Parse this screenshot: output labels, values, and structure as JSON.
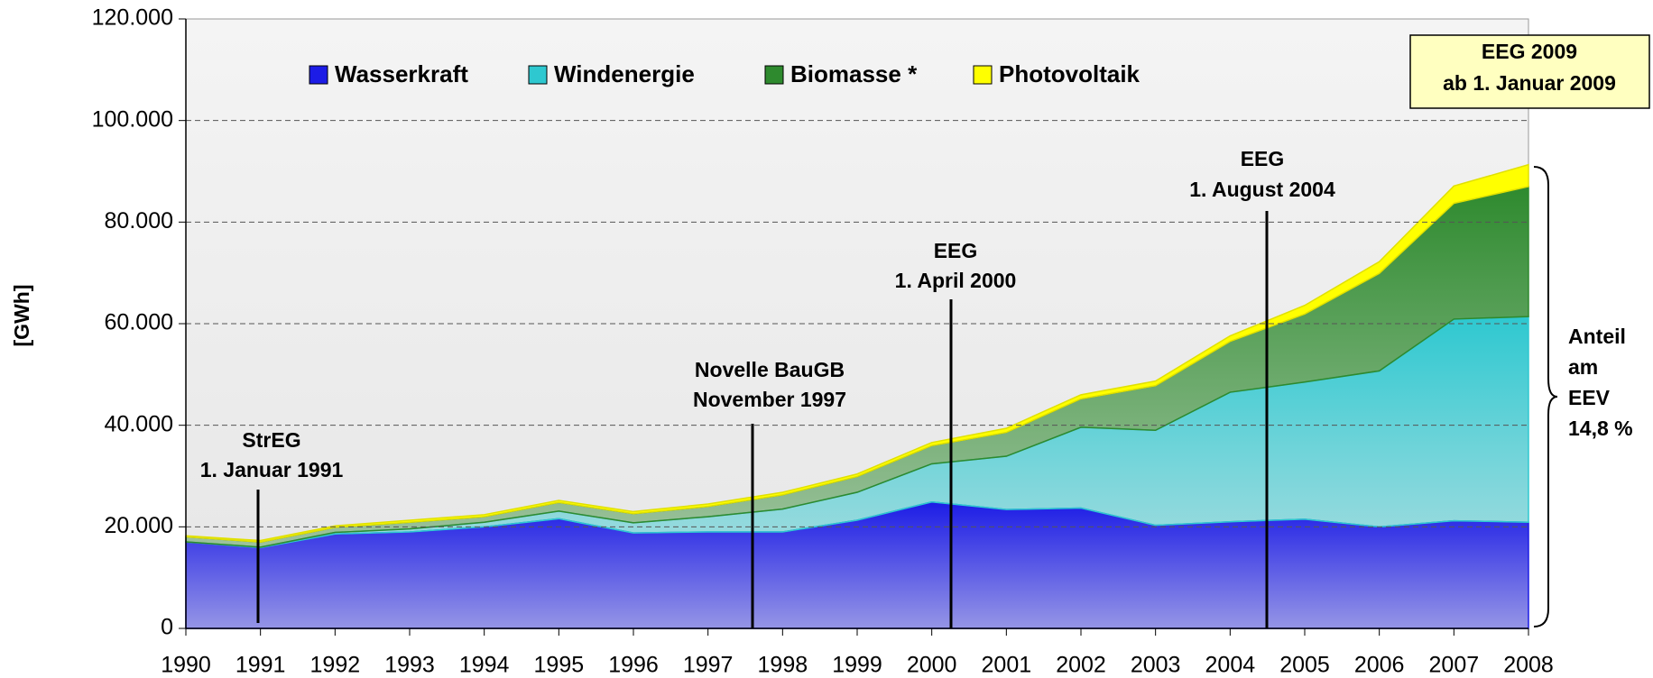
{
  "chart_data": {
    "type": "area",
    "stacked": true,
    "y_label": "[GWh]",
    "categories": [
      "1990",
      "1991",
      "1992",
      "1993",
      "1994",
      "1995",
      "1996",
      "1997",
      "1998",
      "1999",
      "2000",
      "2001",
      "2002",
      "2003",
      "2004",
      "2005",
      "2006",
      "2007",
      "2008"
    ],
    "series": [
      {
        "name": "Wasserkraft",
        "color": "#1c1ce6",
        "values": [
          17000,
          15900,
          18600,
          19000,
          20000,
          21600,
          18800,
          19000,
          19000,
          21300,
          24900,
          23400,
          23700,
          20300,
          21000,
          21500,
          20000,
          21200,
          20900
        ]
      },
      {
        "name": "Windenergie",
        "color": "#2ec8d0",
        "values": [
          40,
          100,
          300,
          600,
          900,
          1500,
          2000,
          3000,
          4500,
          5500,
          7500,
          10500,
          15900,
          18700,
          25500,
          27000,
          30700,
          39700,
          40500
        ]
      },
      {
        "name": "Biomasse *",
        "color": "#2e8a2e",
        "values": [
          1000,
          1000,
          1000,
          1300,
          1100,
          1700,
          1800,
          2000,
          2800,
          3100,
          3600,
          4700,
          5600,
          8800,
          10000,
          13400,
          19200,
          22800,
          25600
        ]
      },
      {
        "name": "Photovoltaik",
        "color": "#ffff00",
        "values": [
          200,
          300,
          300,
          400,
          400,
          400,
          400,
          500,
          500,
          500,
          600,
          800,
          800,
          900,
          1100,
          1700,
          2300,
          3400,
          4300
        ]
      }
    ],
    "ylim": [
      0,
      120000
    ],
    "yticks": [
      0,
      {
        "value": 20000,
        "label": "20.000"
      },
      {
        "value": 40000,
        "label": "40.000"
      },
      {
        "value": 60000,
        "label": "60.000"
      },
      {
        "value": 80000,
        "label": "80.000"
      },
      {
        "value": 100000,
        "label": "100.000"
      },
      {
        "value": 120000,
        "label": "120.000"
      }
    ],
    "grid": true,
    "annotations": [
      {
        "lines": [
          "StrEG",
          "1. Januar 1991"
        ]
      },
      {
        "lines": [
          "Novelle BauGB",
          "November 1997"
        ]
      },
      {
        "lines": [
          "EEG",
          "1. April 2000"
        ]
      },
      {
        "lines": [
          "EEG",
          "1. August  2004"
        ]
      }
    ],
    "box": {
      "lines": [
        "EEG 2009",
        "ab 1. Januar 2009"
      ]
    },
    "share_note": {
      "lines": [
        "Anteil",
        "am",
        "EEV",
        "14,8 %"
      ]
    }
  }
}
